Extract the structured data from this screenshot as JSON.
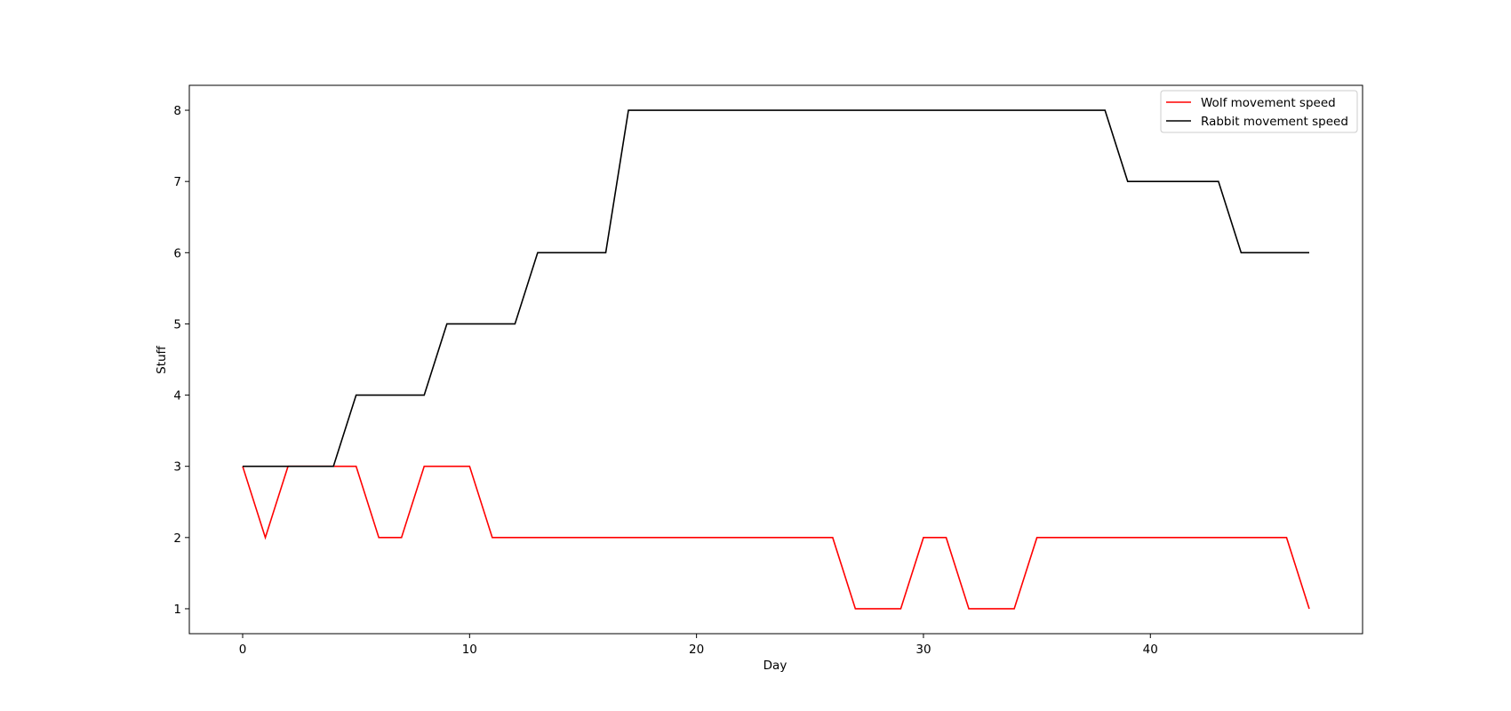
{
  "chart_data": {
    "type": "line",
    "title": "",
    "xlabel": "Day",
    "ylabel": "Stuff",
    "xlim": [
      -2.35,
      49.35
    ],
    "ylim": [
      0.65,
      8.35
    ],
    "xticks": [
      0,
      10,
      20,
      30,
      40
    ],
    "yticks": [
      1,
      2,
      3,
      4,
      5,
      6,
      7,
      8
    ],
    "grid": false,
    "legend_position": "top-right",
    "x": [
      0,
      1,
      2,
      3,
      4,
      5,
      6,
      7,
      8,
      9,
      10,
      11,
      12,
      13,
      14,
      15,
      16,
      17,
      18,
      19,
      20,
      21,
      22,
      23,
      24,
      25,
      26,
      27,
      28,
      29,
      30,
      31,
      32,
      33,
      34,
      35,
      36,
      37,
      38,
      39,
      40,
      41,
      42,
      43,
      44,
      45,
      46,
      47
    ],
    "series": [
      {
        "name": "Wolf movement speed",
        "color": "#ff0000",
        "values": [
          3,
          2,
          3,
          3,
          3,
          3,
          2,
          2,
          3,
          3,
          3,
          2,
          2,
          2,
          2,
          2,
          2,
          2,
          2,
          2,
          2,
          2,
          2,
          2,
          2,
          2,
          2,
          1,
          1,
          1,
          2,
          2,
          1,
          1,
          1,
          2,
          2,
          2,
          2,
          2,
          2,
          2,
          2,
          2,
          2,
          2,
          2,
          1
        ]
      },
      {
        "name": "Rabbit movement speed",
        "color": "#000000",
        "values": [
          3,
          3,
          3,
          3,
          3,
          4,
          4,
          4,
          4,
          5,
          5,
          5,
          5,
          6,
          6,
          6,
          6,
          8,
          8,
          8,
          8,
          8,
          8,
          8,
          8,
          8,
          8,
          8,
          8,
          8,
          8,
          8,
          8,
          8,
          8,
          8,
          8,
          8,
          8,
          7,
          7,
          7,
          7,
          7,
          6,
          6,
          6,
          6
        ]
      }
    ]
  }
}
